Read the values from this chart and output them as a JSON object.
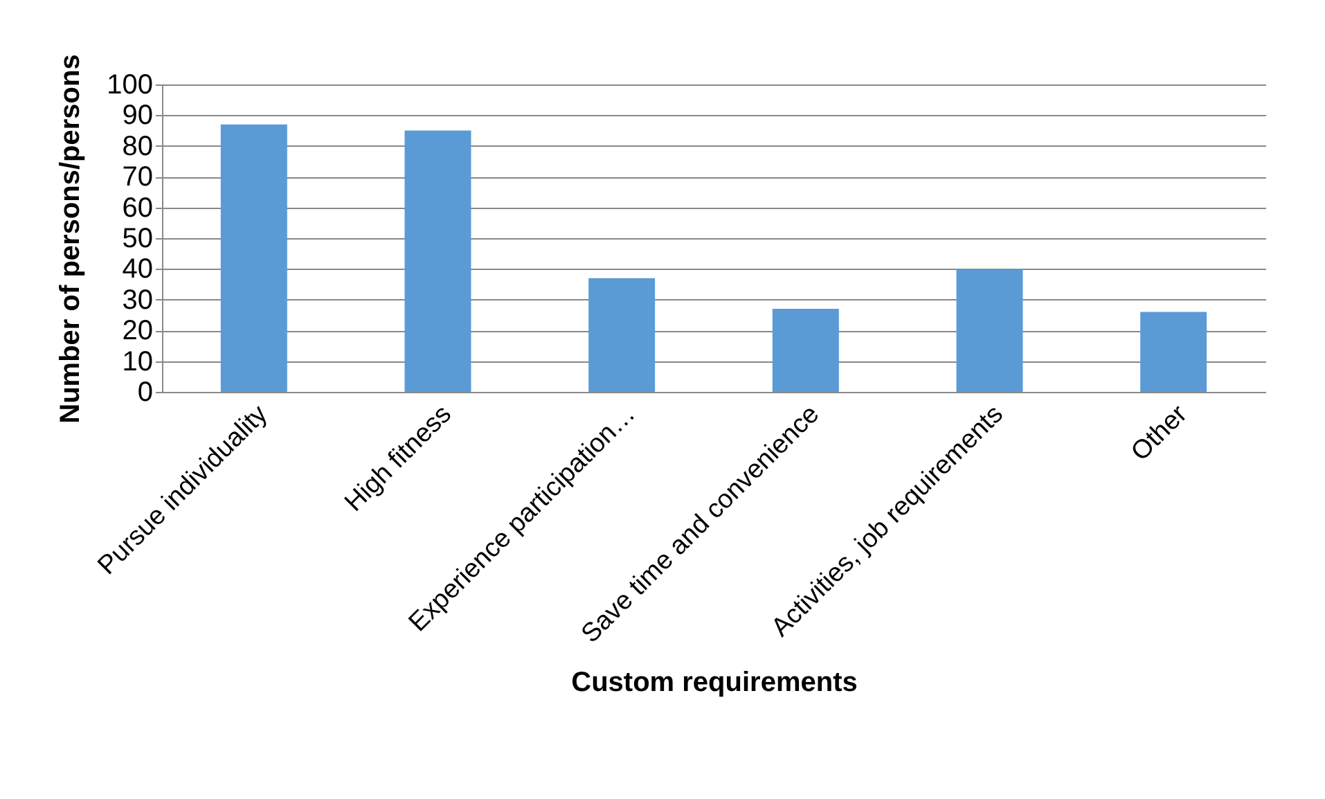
{
  "chart_data": {
    "type": "bar",
    "xlabel": "Custom requirements",
    "ylabel": "Number of persons/persons",
    "categories": [
      "Pursue individuality",
      "High fitness",
      "Experience participation…",
      "Save time and convenience",
      "Activities, job requirements",
      "Other"
    ],
    "values": [
      87,
      85,
      37,
      27,
      40,
      26
    ],
    "color": "#5b9bd5",
    "ylim": [
      0,
      100
    ],
    "yticks": [
      0,
      10,
      20,
      30,
      40,
      50,
      60,
      70,
      80,
      90,
      100
    ],
    "grid": "y"
  }
}
